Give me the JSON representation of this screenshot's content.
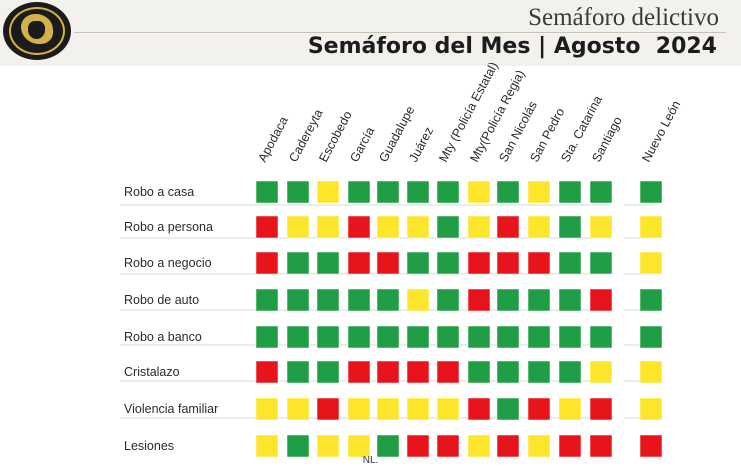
{
  "header": {
    "title": "Semáforo delictivo",
    "subtitle_left": "Semáforo del Mes |",
    "subtitle_right": "Agosto  2024"
  },
  "footer": {
    "text": "NL."
  },
  "colors": {
    "V": "#1f9e45",
    "A": "#fde52c",
    "R": "#e8141b"
  },
  "chart_data": {
    "type": "heatmap",
    "columns": [
      "Apodaca",
      "Cadereyta",
      "Escobedo",
      "García",
      "Guadalupe",
      "Juárez",
      "Mty (Policía Estatal)",
      "Mty(Policía Regia)",
      "San Nicolás",
      "San Pedro",
      "Sta. Catarina",
      "Santiago",
      "Nuevo León"
    ],
    "rows": [
      "Robo a casa",
      "Robo a persona",
      "Robo a negocio",
      "Robo de auto",
      "Robo a banco",
      "Cristalazo",
      "Violencia familiar",
      "Lesiones"
    ],
    "cells": [
      [
        "V",
        "V",
        "A",
        "V",
        "V",
        "V",
        "V",
        "A",
        "V",
        "A",
        "V",
        "V",
        "V"
      ],
      [
        "R",
        "A",
        "A",
        "R",
        "A",
        "A",
        "V",
        "A",
        "R",
        "A",
        "V",
        "A",
        "A"
      ],
      [
        "R",
        "V",
        "V",
        "R",
        "R",
        "V",
        "V",
        "R",
        "R",
        "R",
        "V",
        "V",
        "A"
      ],
      [
        "V",
        "V",
        "V",
        "V",
        "V",
        "A",
        "V",
        "R",
        "V",
        "V",
        "V",
        "R",
        "V"
      ],
      [
        "V",
        "V",
        "V",
        "V",
        "V",
        "V",
        "V",
        "V",
        "V",
        "V",
        "V",
        "V",
        "V"
      ],
      [
        "R",
        "V",
        "V",
        "R",
        "R",
        "R",
        "R",
        "V",
        "V",
        "V",
        "V",
        "A",
        "A"
      ],
      [
        "A",
        "A",
        "R",
        "A",
        "A",
        "A",
        "A",
        "R",
        "V",
        "R",
        "A",
        "R",
        "A"
      ],
      [
        "A",
        "V",
        "A",
        "A",
        "V",
        "R",
        "R",
        "A",
        "R",
        "A",
        "R",
        "R",
        "R"
      ]
    ],
    "legend": {
      "V": "verde",
      "A": "amarillo",
      "R": "rojo"
    }
  }
}
